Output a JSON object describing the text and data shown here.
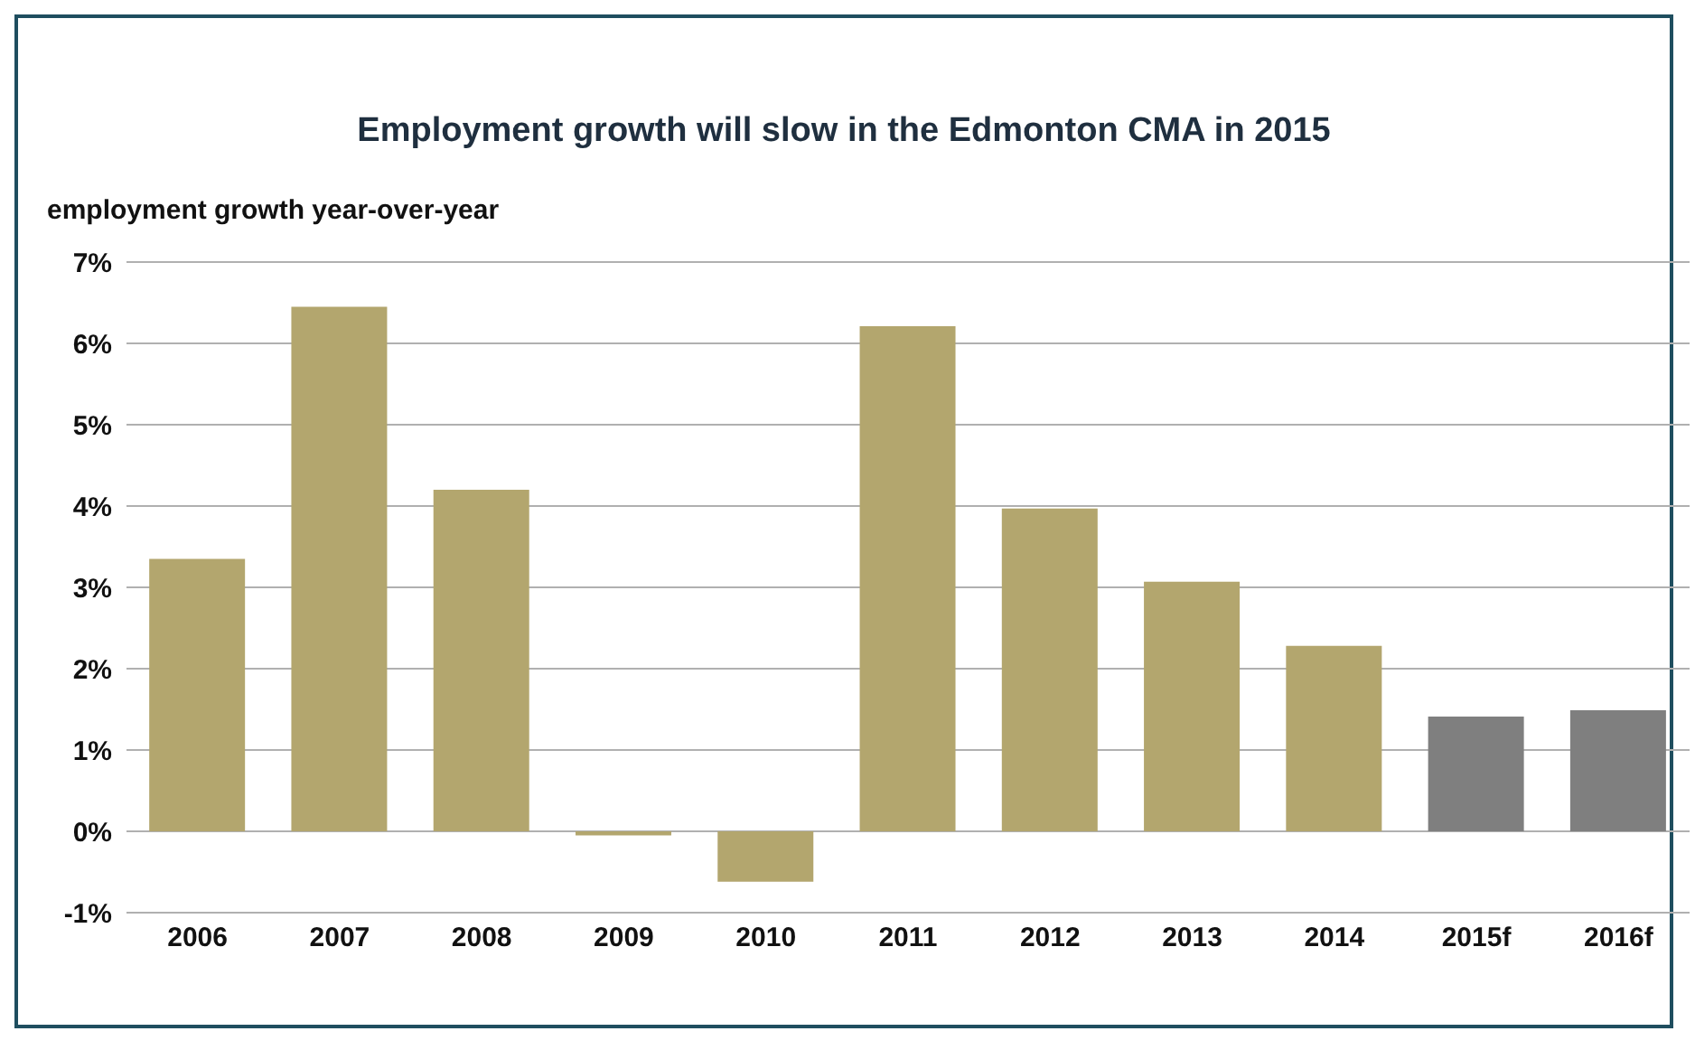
{
  "chart_data": {
    "type": "bar",
    "title": "Employment growth will slow in the Edmonton CMA in 2015",
    "ylabel": "employment growth year-over-year",
    "categories": [
      "2006",
      "2007",
      "2008",
      "2009",
      "2010",
      "2011",
      "2012",
      "2013",
      "2014",
      "2015f",
      "2016f"
    ],
    "values": [
      3.35,
      6.45,
      4.2,
      -0.05,
      -0.62,
      6.21,
      3.97,
      3.07,
      2.28,
      1.41,
      1.49
    ],
    "colors": [
      "#b3a66e",
      "#b3a66e",
      "#b3a66e",
      "#b3a66e",
      "#b3a66e",
      "#b3a66e",
      "#b3a66e",
      "#b3a66e",
      "#b3a66e",
      "#7f7f7f",
      "#7f7f7f"
    ],
    "ylim": [
      -1,
      7
    ],
    "yticks": [
      {
        "value": -1,
        "label": "-1%"
      },
      {
        "value": 0,
        "label": "0%"
      },
      {
        "value": 1,
        "label": "1%"
      },
      {
        "value": 2,
        "label": "2%"
      },
      {
        "value": 3,
        "label": "3%"
      },
      {
        "value": 4,
        "label": "4%"
      },
      {
        "value": 5,
        "label": "5%"
      },
      {
        "value": 6,
        "label": "6%"
      },
      {
        "value": 7,
        "label": "7%"
      }
    ],
    "grid": "y",
    "legend": false
  }
}
